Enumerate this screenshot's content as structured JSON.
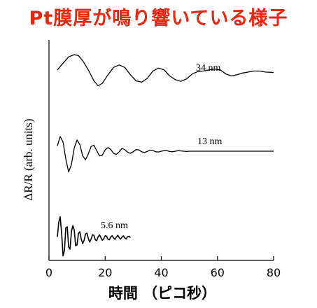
{
  "title": "Pt膜厚が鳴り響いている様子",
  "colors": {
    "title": "#e8250e",
    "ink": "#000000",
    "background": "#ffffff"
  },
  "chart_data": {
    "type": "line",
    "xlabel": "時間 （ピコ秒）",
    "ylabel": "ΔR/R (arb. units)",
    "xlim": [
      0,
      80
    ],
    "xticks": [
      "0",
      "20",
      "40",
      "60",
      "80"
    ],
    "series": [
      {
        "name": "34 nm",
        "x": [
          3,
          5,
          7,
          9,
          10.5,
          12,
          14,
          16,
          17.5,
          19,
          21,
          23,
          25,
          27,
          29,
          31,
          33,
          35,
          37,
          39,
          41,
          43,
          45,
          47,
          49,
          51,
          53,
          55,
          57,
          59,
          61,
          63,
          65,
          67,
          69,
          71,
          73,
          75,
          77,
          79,
          80
        ],
        "y": [
          0.35,
          0.62,
          0.88,
          0.97,
          0.93,
          0.72,
          0.35,
          -0.1,
          -0.3,
          -0.2,
          0.15,
          0.45,
          0.55,
          0.45,
          0.15,
          -0.1,
          -0.15,
          0.0,
          0.3,
          0.42,
          0.35,
          0.1,
          -0.05,
          -0.12,
          -0.02,
          0.18,
          0.28,
          0.3,
          0.35,
          0.38,
          0.35,
          0.18,
          0.1,
          0.15,
          0.22,
          0.26,
          0.3,
          0.3,
          0.26,
          0.25,
          0.24
        ]
      },
      {
        "name": "13 nm",
        "x": [
          3,
          4,
          5,
          6,
          7,
          8,
          9,
          10,
          11,
          12,
          13,
          14,
          15,
          16,
          17,
          18,
          19,
          20,
          21,
          22,
          23,
          24,
          25,
          26,
          27,
          28,
          29,
          30,
          31,
          32,
          33,
          34,
          35,
          36,
          37,
          38,
          39,
          40,
          41,
          42,
          43,
          44,
          45,
          46,
          47,
          48,
          49,
          50,
          55,
          60,
          65,
          70,
          75,
          80
        ],
        "y": [
          0.2,
          0.55,
          0.35,
          -0.3,
          -0.78,
          -0.5,
          0.12,
          0.42,
          0.25,
          -0.18,
          -0.32,
          -0.1,
          0.18,
          0.22,
          0.02,
          -0.18,
          -0.15,
          0.05,
          0.14,
          0.06,
          -0.08,
          -0.12,
          -0.02,
          0.1,
          0.06,
          -0.04,
          -0.08,
          -0.02,
          0.06,
          0.05,
          -0.02,
          -0.05,
          -0.01,
          0.04,
          0.03,
          -0.02,
          -0.03,
          0.0,
          0.02,
          0.02,
          -0.01,
          -0.02,
          0.0,
          0.02,
          0.01,
          0.0,
          -0.01,
          0.0,
          0.0,
          0.0,
          0.0,
          0.0,
          0.0,
          0.0
        ]
      },
      {
        "name": "5.6 nm",
        "x": [
          3,
          3.5,
          4,
          4.5,
          5,
          5.5,
          6,
          6.5,
          7,
          7.5,
          8,
          8.5,
          9,
          9.5,
          10,
          10.5,
          11,
          11.5,
          12,
          12.5,
          13,
          13.5,
          14,
          14.5,
          15,
          15.5,
          16,
          16.5,
          17,
          17.5,
          18,
          18.5,
          19,
          19.5,
          20,
          20.5,
          21,
          21.5,
          22,
          22.5,
          23,
          23.5,
          24,
          24.5,
          25,
          25.5,
          26,
          26.5,
          27,
          27.5,
          28,
          28.5,
          29
        ],
        "y": [
          0.05,
          0.7,
          0.95,
          0.2,
          -0.8,
          -0.55,
          0.45,
          0.5,
          -0.4,
          -0.5,
          0.3,
          0.55,
          0.35,
          -0.35,
          -0.3,
          0.2,
          0.28,
          -0.05,
          -0.25,
          -0.1,
          0.18,
          0.22,
          -0.02,
          -0.18,
          -0.05,
          0.15,
          0.12,
          -0.08,
          -0.12,
          0.05,
          0.14,
          0.02,
          -0.1,
          -0.04,
          0.1,
          0.08,
          -0.06,
          -0.08,
          0.05,
          0.1,
          0.0,
          -0.06,
          0.04,
          0.12,
          0.02,
          -0.05,
          0.04,
          0.1,
          0.0,
          -0.04,
          0.06,
          0.08,
          0.02
        ]
      }
    ]
  }
}
